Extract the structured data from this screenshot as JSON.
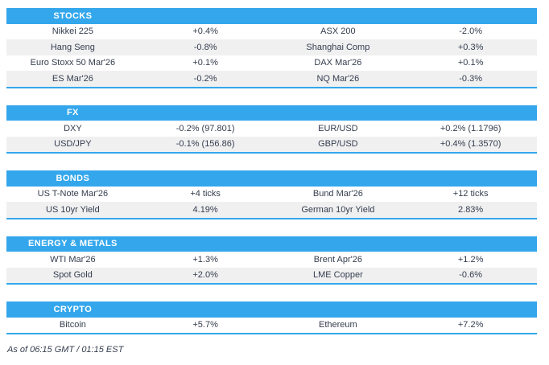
{
  "colors": {
    "accent": "#34a7ec",
    "stripe": "#f0f0f1",
    "text": "#343d4e",
    "header_text": "#ffffff"
  },
  "sections": [
    {
      "title": "STOCKS",
      "rows": [
        [
          "Nikkei 225",
          "+0.4%",
          "ASX 200",
          "-2.0%"
        ],
        [
          "Hang Seng",
          "-0.8%",
          "Shanghai Comp",
          "+0.3%"
        ],
        [
          "Euro Stoxx 50 Mar'26",
          "+0.1%",
          "DAX Mar'26",
          "+0.1%"
        ],
        [
          "ES Mar'26",
          "-0.2%",
          "NQ Mar'26",
          "-0.3%"
        ]
      ]
    },
    {
      "title": "FX",
      "rows": [
        [
          "DXY",
          "-0.2% (97.801)",
          "EUR/USD",
          "+0.2% (1.1796)"
        ],
        [
          "USD/JPY",
          "-0.1% (156.86)",
          "GBP/USD",
          "+0.4% (1.3570)"
        ]
      ]
    },
    {
      "title": "BONDS",
      "rows": [
        [
          "US T-Note Mar'26",
          "+4 ticks",
          "Bund Mar'26",
          "+12 ticks"
        ],
        [
          "US 10yr Yield",
          "4.19%",
          "German 10yr Yield",
          "2.83%"
        ]
      ]
    },
    {
      "title": "ENERGY & METALS",
      "rows": [
        [
          "WTI Mar'26",
          "+1.3%",
          "Brent Apr'26",
          "+1.2%"
        ],
        [
          "Spot Gold",
          "+2.0%",
          "LME Copper",
          "-0.6%"
        ]
      ]
    },
    {
      "title": "CRYPTO",
      "rows": [
        [
          "Bitcoin",
          "+5.7%",
          "Ethereum",
          "+7.2%"
        ]
      ]
    }
  ],
  "footer": {
    "as_of": "As of 06:15 GMT / 01:15 EST"
  }
}
